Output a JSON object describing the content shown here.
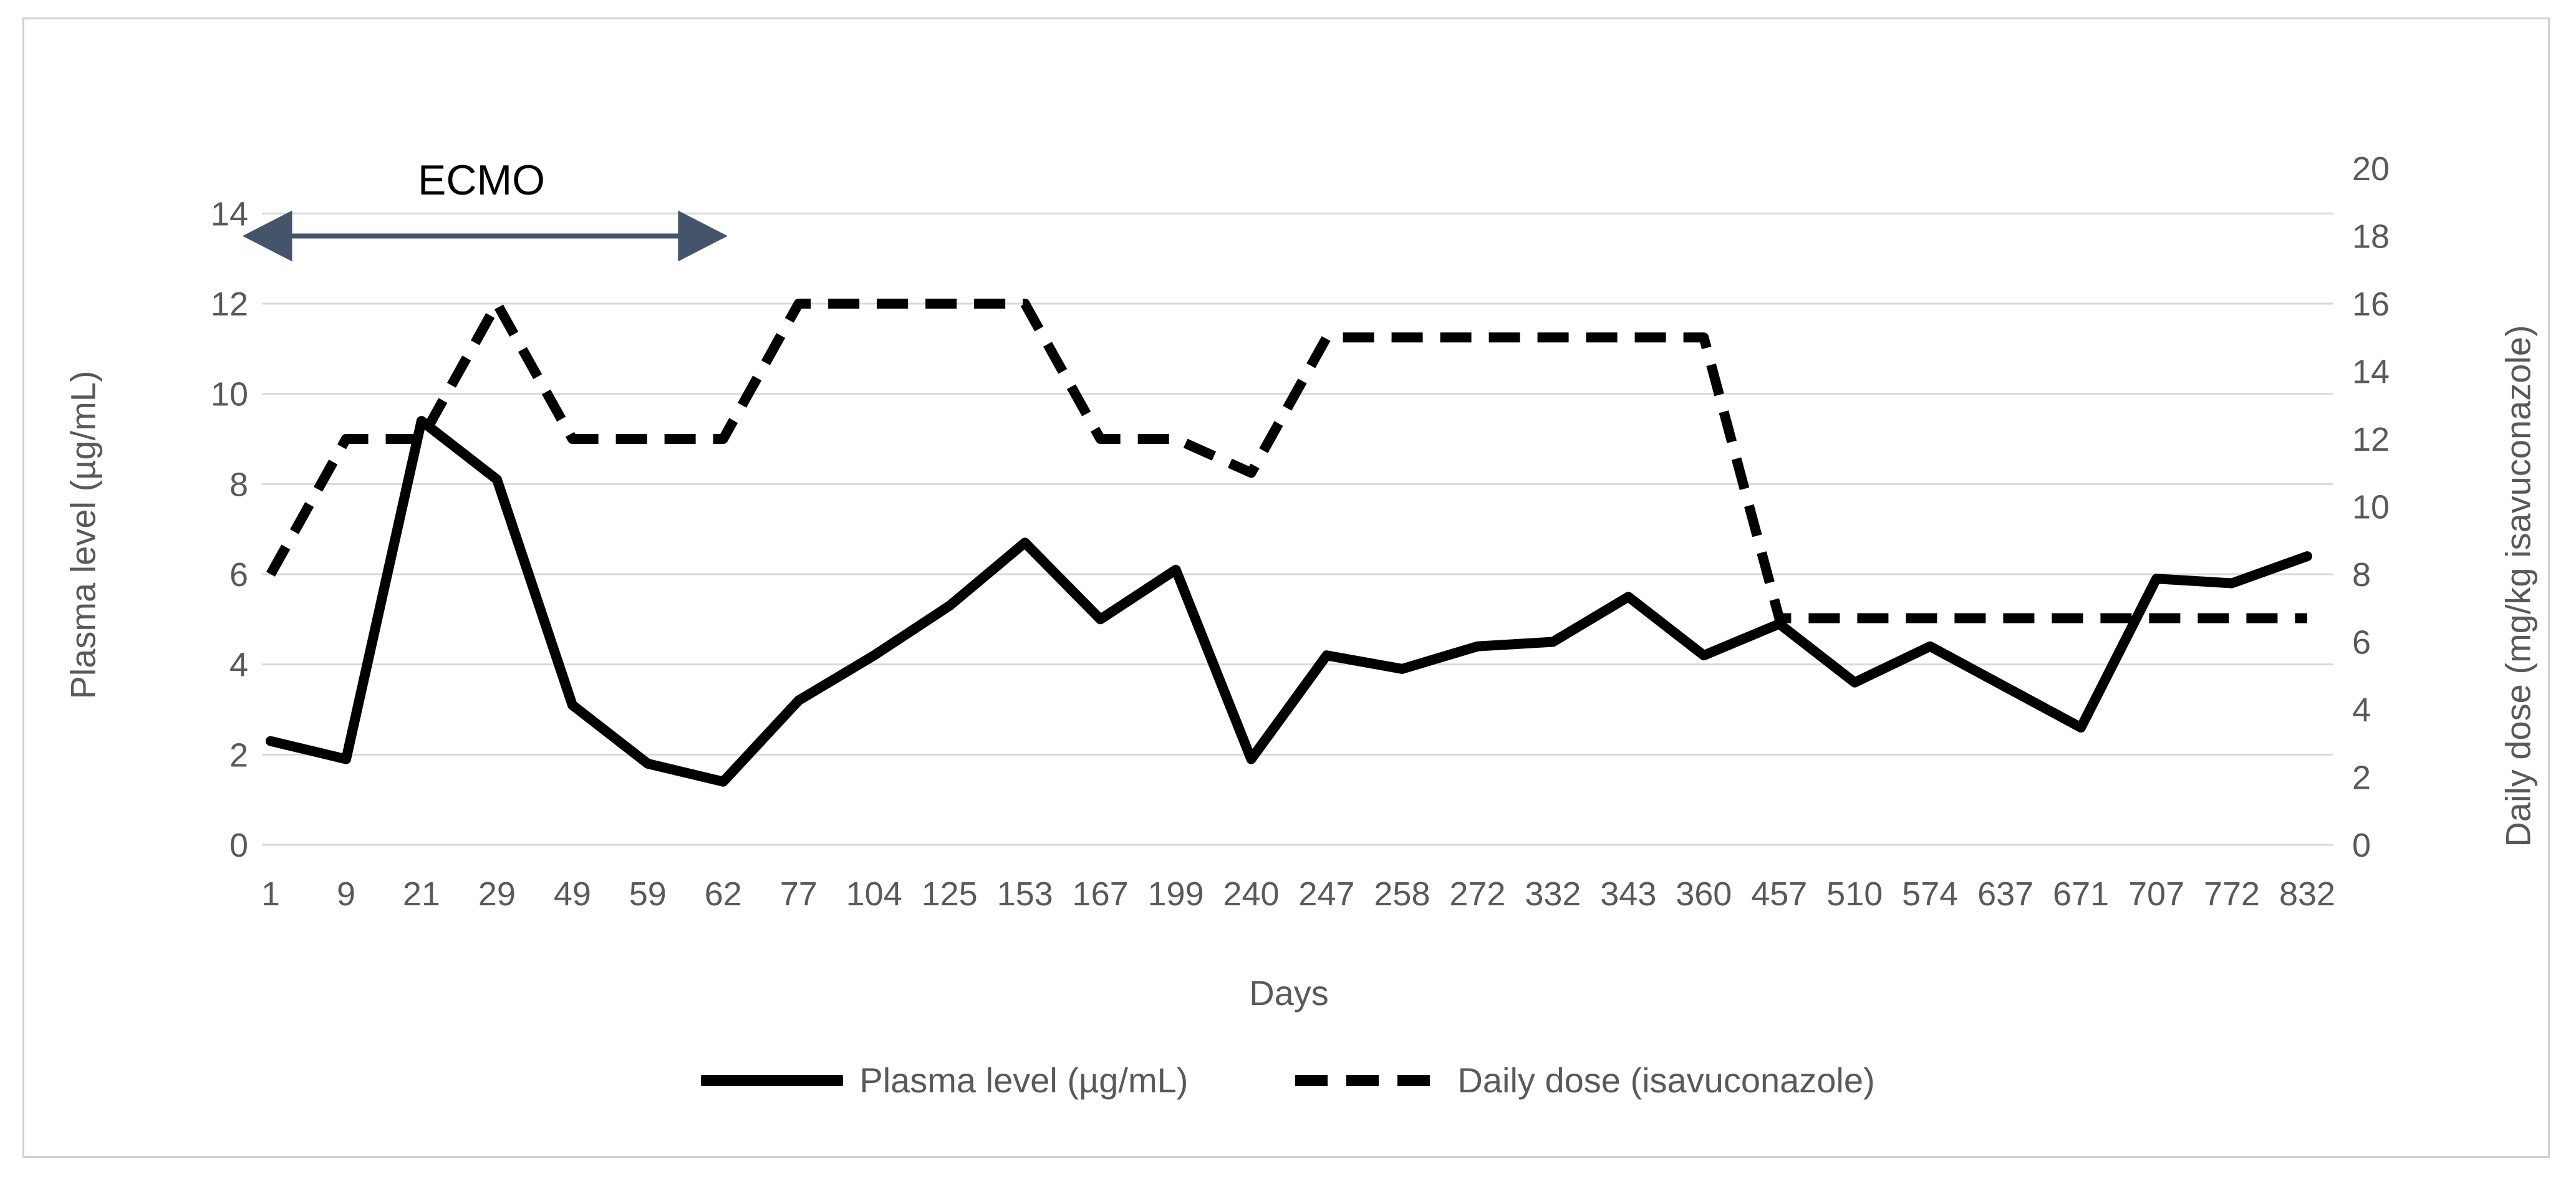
{
  "figure": {
    "ecmo_label": "ECMO",
    "x_axis_title": "Days",
    "left_axis_title": "Plasma level (µg/mL)",
    "right_axis_title": "Daily dose (mg/kg isavuconazole)"
  },
  "legend": {
    "plasma_label": "Plasma level (µg/mL)",
    "dose_label": "Daily dose (isavuconazole)"
  },
  "colors": {
    "series": "#000000",
    "grid": "#d9d9d9",
    "tick_text": "#595959",
    "arrow": "#44546a",
    "background": "#ffffff"
  },
  "chart_data": {
    "type": "line",
    "title": "",
    "xlabel": "Days",
    "x_categories": [
      1,
      9,
      21,
      29,
      49,
      59,
      62,
      77,
      104,
      125,
      153,
      167,
      199,
      240,
      247,
      258,
      272,
      332,
      343,
      360,
      457,
      510,
      574,
      637,
      671,
      707,
      772,
      832
    ],
    "series": [
      {
        "name": "Plasma level (µg/mL)",
        "axis": "left",
        "style": "solid",
        "values": [
          2.3,
          1.9,
          9.4,
          8.1,
          3.1,
          1.8,
          1.4,
          3.2,
          4.2,
          5.3,
          6.7,
          5.0,
          6.1,
          1.9,
          4.2,
          3.9,
          4.4,
          4.5,
          5.5,
          4.2,
          4.9,
          3.6,
          4.4,
          3.5,
          2.6,
          5.9,
          5.8,
          6.4
        ]
      },
      {
        "name": "Daily dose (isavuconazole)",
        "axis": "right",
        "style": "dashed",
        "values": [
          8,
          12,
          12,
          16,
          12,
          12,
          12,
          16,
          16,
          16,
          16,
          12,
          12,
          11,
          15,
          15,
          15,
          15,
          15,
          15,
          6.7,
          6.7,
          6.7,
          6.7,
          6.7,
          6.7,
          6.7,
          6.7
        ]
      }
    ],
    "left_axis": {
      "label": "Plasma level (µg/mL)",
      "ticks": [
        0,
        2,
        4,
        6,
        8,
        10,
        12,
        14
      ],
      "min": 0,
      "max": 15
    },
    "right_axis": {
      "label": "Daily dose (mg/kg isavuconazole)",
      "ticks": [
        0,
        2,
        4,
        6,
        8,
        10,
        12,
        14,
        16,
        18,
        20
      ],
      "min": 0,
      "max": 20
    },
    "grid": "horizontal-on",
    "legend_position": "bottom",
    "annotation": {
      "text": "ECMO",
      "arrow": "double-headed",
      "span_category_start": 1,
      "span_category_end": 62
    }
  }
}
